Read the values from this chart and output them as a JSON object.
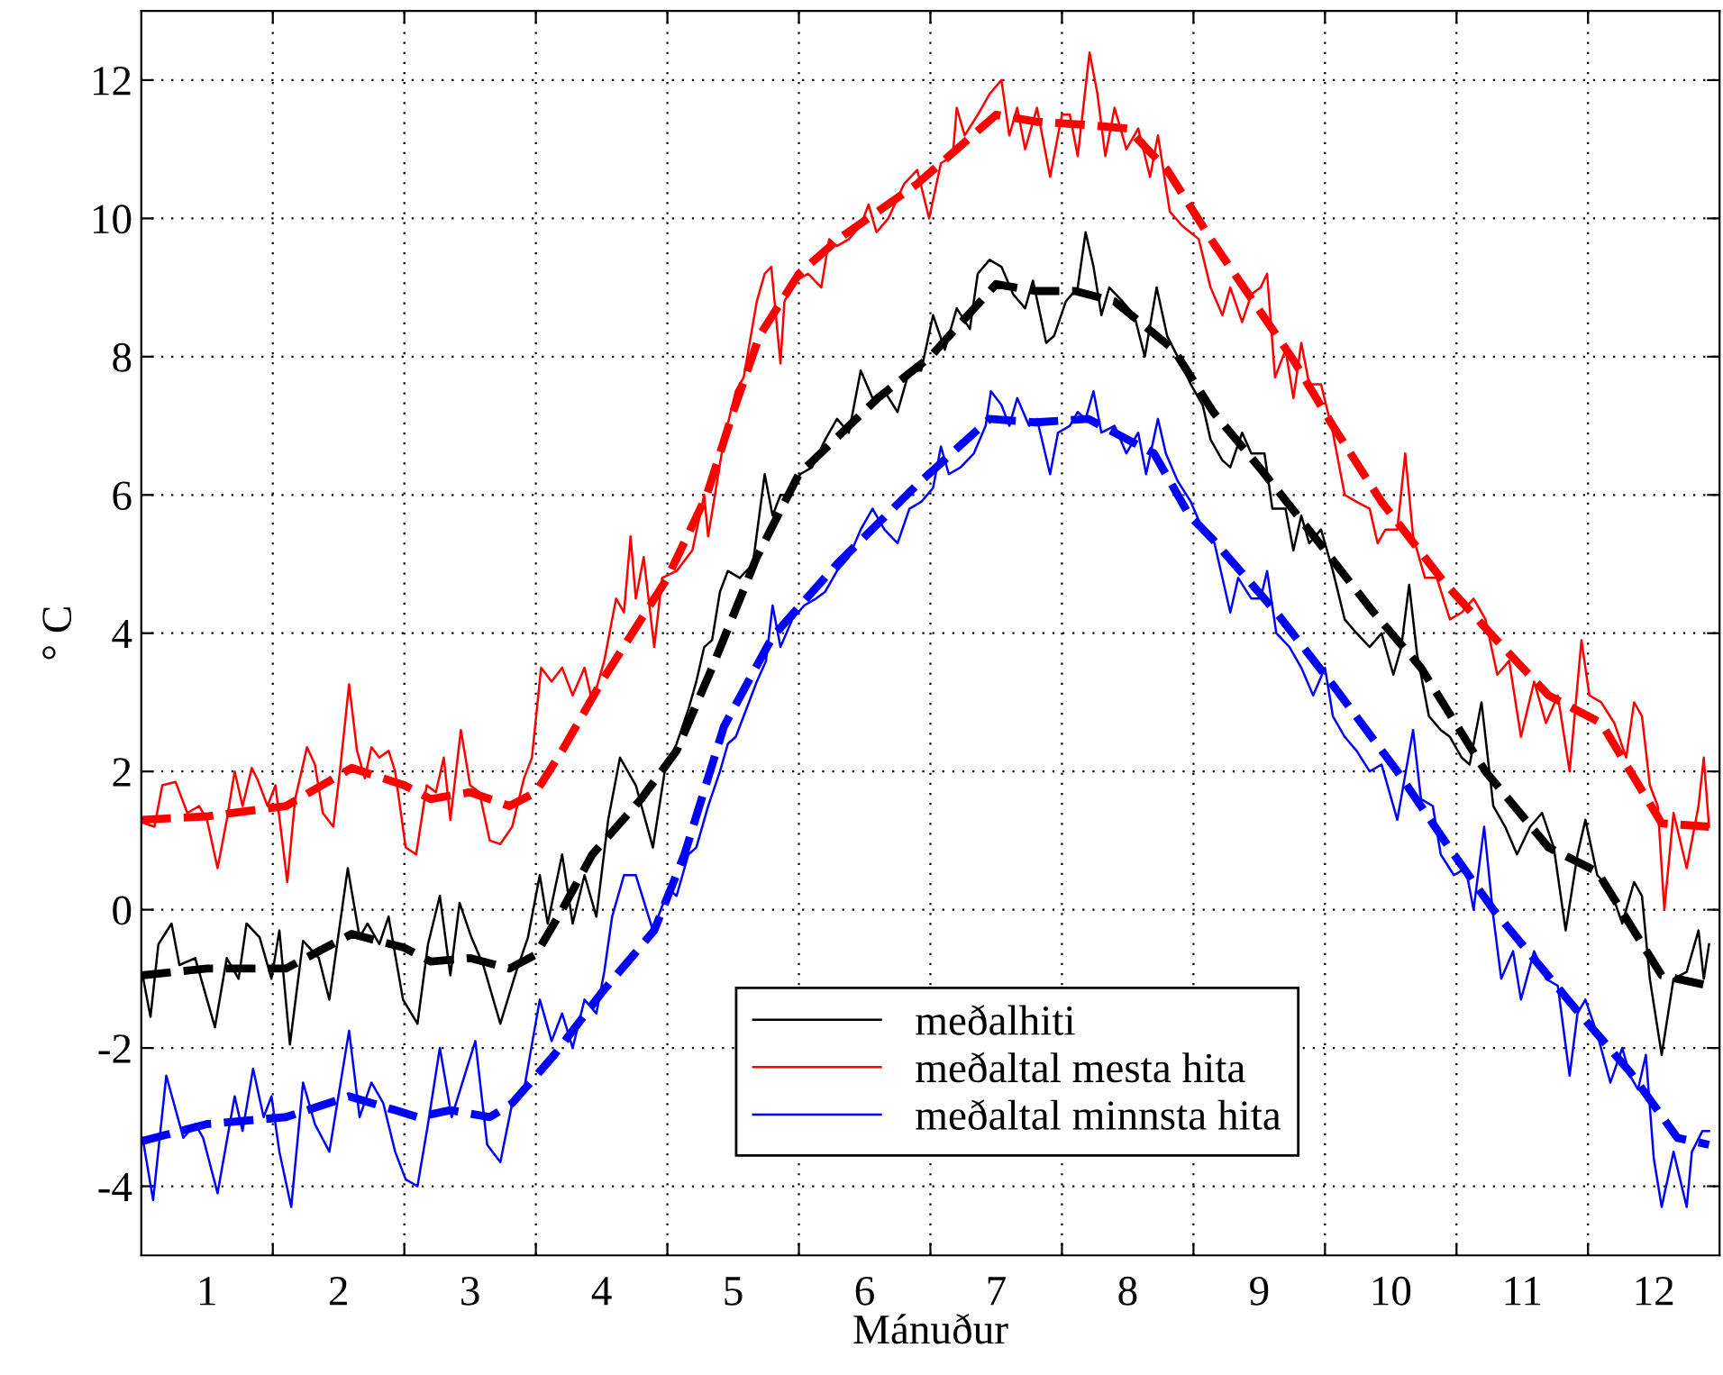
{
  "chart_data": {
    "type": "line",
    "xlabel": "Mánuður",
    "ylabel": "° C",
    "xlim": [
      0.5,
      12.5
    ],
    "ylim": [
      -5,
      13
    ],
    "xticks": [
      {
        "value": 1,
        "label": "1"
      },
      {
        "value": 1.5,
        "label": null
      },
      {
        "value": 2,
        "label": "2"
      },
      {
        "value": 2.5,
        "label": null
      },
      {
        "value": 3,
        "label": "3"
      },
      {
        "value": 3.5,
        "label": null
      },
      {
        "value": 4,
        "label": "4"
      },
      {
        "value": 4.5,
        "label": null
      },
      {
        "value": 5,
        "label": "5"
      },
      {
        "value": 5.5,
        "label": null
      },
      {
        "value": 6,
        "label": "6"
      },
      {
        "value": 6.5,
        "label": null
      },
      {
        "value": 7,
        "label": "7"
      },
      {
        "value": 7.5,
        "label": null
      },
      {
        "value": 8,
        "label": "8"
      },
      {
        "value": 8.5,
        "label": null
      },
      {
        "value": 9,
        "label": "9"
      },
      {
        "value": 9.5,
        "label": null
      },
      {
        "value": 10,
        "label": "10"
      },
      {
        "value": 10.5,
        "label": null
      },
      {
        "value": 11,
        "label": "11"
      },
      {
        "value": 11.5,
        "label": null
      },
      {
        "value": 12,
        "label": "12"
      }
    ],
    "yticks": [
      -4,
      -2,
      0,
      2,
      4,
      6,
      8,
      10,
      12
    ],
    "grid": true,
    "legend": "bottom",
    "line_style": "solid",
    "marker": "none",
    "series": [
      {
        "name": "meðalhiti",
        "color": "#000000",
        "x": [
          0.51,
          0.57,
          0.63,
          0.73,
          0.79,
          0.91,
          1.06,
          1.15,
          1.24,
          1.3,
          1.4,
          1.49,
          1.55,
          1.63,
          1.73,
          1.85,
          1.93,
          2.07,
          2.16,
          2.22,
          2.31,
          2.38,
          2.49,
          2.6,
          2.68,
          2.77,
          2.85,
          2.92,
          3.01,
          3.1,
          3.23,
          3.35,
          3.44,
          3.53,
          3.59,
          3.7,
          3.78,
          3.87,
          3.96,
          4.05,
          4.14,
          4.26,
          4.39,
          4.48,
          4.57,
          4.66,
          4.72,
          4.78,
          4.84,
          4.9,
          4.96,
          5.05,
          5.15,
          5.24,
          5.3,
          5.36,
          5.42,
          5.51,
          5.6,
          5.7,
          5.79,
          5.88,
          5.97,
          6.06,
          6.15,
          6.25,
          6.34,
          6.43,
          6.52,
          6.61,
          6.7,
          6.8,
          6.86,
          6.95,
          7.04,
          7.13,
          7.22,
          7.28,
          7.38,
          7.44,
          7.53,
          7.62,
          7.68,
          7.74,
          7.8,
          7.86,
          7.96,
          8.05,
          8.13,
          8.22,
          8.3,
          8.38,
          8.48,
          8.57,
          8.63,
          8.72,
          8.78,
          8.87,
          8.94,
          9.04,
          9.1,
          9.2,
          9.26,
          9.32,
          9.38,
          9.47,
          9.56,
          9.65,
          9.74,
          9.84,
          9.93,
          10.02,
          10.08,
          10.14,
          10.2,
          10.29,
          10.38,
          10.45,
          10.54,
          10.6,
          10.69,
          10.78,
          10.87,
          10.96,
          11.06,
          11.15,
          11.24,
          11.33,
          11.42,
          11.48,
          11.57,
          11.67,
          11.76,
          11.85,
          11.91,
          11.97,
          12.06,
          12.15,
          12.25,
          12.34,
          12.38,
          12.42
        ],
        "values": [
          -0.95,
          -1.55,
          -0.5,
          -0.2,
          -0.8,
          -0.7,
          -1.7,
          -0.7,
          -1.0,
          -0.2,
          -0.4,
          -1.0,
          -0.3,
          -1.95,
          -0.45,
          -0.7,
          -1.3,
          0.6,
          -0.4,
          -0.2,
          -0.5,
          -0.1,
          -1.3,
          -1.65,
          -0.5,
          0.2,
          -0.95,
          0.1,
          -0.4,
          -0.8,
          -1.65,
          -0.9,
          -0.4,
          0.5,
          -0.2,
          0.8,
          -0.2,
          0.5,
          -0.1,
          1.3,
          2.2,
          1.8,
          0.9,
          2.0,
          2.4,
          2.9,
          3.3,
          3.8,
          3.9,
          4.6,
          4.9,
          4.8,
          5.0,
          6.3,
          5.7,
          6.0,
          6.0,
          6.3,
          6.4,
          6.8,
          7.1,
          6.9,
          7.8,
          7.4,
          7.5,
          7.2,
          7.8,
          7.8,
          8.6,
          8.1,
          8.7,
          8.4,
          9.2,
          9.4,
          9.3,
          8.9,
          8.7,
          9.1,
          8.2,
          8.3,
          8.8,
          9.0,
          9.8,
          9.3,
          8.6,
          9.0,
          8.8,
          8.6,
          8.0,
          9.0,
          8.3,
          8.0,
          7.6,
          7.3,
          6.8,
          6.5,
          6.4,
          6.9,
          6.6,
          6.6,
          5.8,
          5.8,
          5.2,
          5.7,
          5.3,
          5.5,
          4.9,
          4.2,
          4.0,
          3.8,
          4.0,
          3.4,
          3.8,
          4.7,
          3.7,
          2.8,
          2.6,
          2.5,
          2.2,
          2.1,
          3.0,
          1.5,
          1.2,
          0.8,
          1.2,
          1.4,
          0.9,
          -0.3,
          0.8,
          1.3,
          0.5,
          0.3,
          -0.2,
          0.4,
          0.2,
          -1.0,
          -2.1,
          -1.0,
          -0.9,
          -0.3,
          -1.0,
          -0.5
        ]
      },
      {
        "name": "meðaltal mesta hita",
        "color": "#ff0000",
        "x": [
          0.51,
          0.6,
          0.66,
          0.76,
          0.85,
          0.94,
          1.0,
          1.08,
          1.15,
          1.21,
          1.27,
          1.34,
          1.38,
          1.46,
          1.52,
          1.61,
          1.67,
          1.76,
          1.82,
          1.88,
          1.96,
          2.01,
          2.08,
          2.14,
          2.2,
          2.25,
          2.31,
          2.38,
          2.43,
          2.51,
          2.59,
          2.67,
          2.74,
          2.8,
          2.85,
          2.93,
          3.0,
          3.07,
          3.15,
          3.23,
          3.32,
          3.41,
          3.47,
          3.54,
          3.62,
          3.7,
          3.78,
          3.87,
          3.93,
          4.02,
          4.11,
          4.17,
          4.22,
          4.26,
          4.32,
          4.4,
          4.46,
          4.57,
          4.69,
          4.78,
          4.81,
          4.93,
          5.02,
          5.08,
          5.18,
          5.24,
          5.29,
          5.36,
          5.39,
          5.48,
          5.57,
          5.67,
          5.73,
          5.79,
          5.88,
          5.97,
          6.03,
          6.09,
          6.18,
          6.3,
          6.4,
          6.49,
          6.58,
          6.67,
          6.7,
          6.76,
          6.86,
          6.95,
          7.04,
          7.1,
          7.16,
          7.22,
          7.31,
          7.41,
          7.5,
          7.56,
          7.62,
          7.71,
          7.77,
          7.83,
          7.9,
          7.99,
          8.08,
          8.17,
          8.23,
          8.32,
          8.41,
          8.54,
          8.63,
          8.72,
          8.78,
          8.87,
          8.94,
          9.01,
          9.06,
          9.12,
          9.2,
          9.26,
          9.32,
          9.38,
          9.47,
          9.56,
          9.65,
          9.74,
          9.84,
          9.9,
          9.96,
          10.05,
          10.11,
          10.17,
          10.26,
          10.35,
          10.45,
          10.54,
          10.63,
          10.72,
          10.81,
          10.9,
          10.99,
          11.09,
          11.18,
          11.27,
          11.36,
          11.45,
          11.51,
          11.6,
          11.7,
          11.79,
          11.85,
          11.91,
          11.97,
          12.03,
          12.08,
          12.15,
          12.25,
          12.34,
          12.38,
          12.42
        ],
        "values": [
          1.26,
          1.2,
          1.8,
          1.85,
          1.4,
          1.5,
          1.3,
          0.6,
          1.3,
          2.0,
          1.5,
          2.05,
          1.9,
          1.5,
          1.8,
          0.4,
          1.6,
          2.35,
          2.1,
          1.4,
          1.2,
          2.0,
          3.26,
          2.3,
          1.9,
          2.35,
          2.2,
          2.3,
          2.0,
          0.9,
          0.8,
          1.8,
          1.7,
          2.2,
          1.3,
          2.6,
          1.8,
          1.7,
          1.0,
          0.95,
          1.2,
          1.9,
          2.2,
          3.5,
          3.3,
          3.5,
          3.1,
          3.5,
          3.0,
          3.6,
          4.5,
          4.3,
          5.4,
          4.5,
          5.1,
          3.8,
          4.8,
          4.9,
          5.2,
          6.0,
          5.4,
          6.8,
          7.5,
          7.7,
          8.8,
          9.2,
          9.3,
          7.9,
          8.8,
          9.1,
          9.2,
          9.0,
          9.7,
          9.6,
          9.7,
          9.9,
          10.2,
          9.8,
          10.0,
          10.5,
          10.7,
          10.0,
          10.8,
          10.9,
          11.6,
          11.2,
          11.5,
          11.8,
          12.0,
          11.2,
          11.6,
          11.0,
          11.6,
          10.6,
          11.5,
          11.5,
          10.9,
          12.4,
          11.8,
          10.9,
          11.6,
          11.0,
          11.3,
          10.6,
          11.2,
          10.1,
          9.9,
          9.7,
          9.0,
          8.6,
          9.0,
          8.5,
          8.9,
          9.0,
          9.2,
          7.7,
          8.1,
          7.4,
          8.2,
          7.6,
          7.6,
          6.9,
          6.0,
          5.9,
          5.8,
          5.3,
          5.5,
          5.5,
          6.6,
          5.4,
          4.8,
          4.8,
          4.2,
          4.3,
          4.5,
          4.2,
          3.4,
          3.6,
          2.5,
          3.3,
          2.7,
          3.1,
          2.0,
          3.9,
          3.1,
          3.0,
          2.7,
          2.2,
          3.0,
          2.8,
          1.8,
          1.5,
          0.0,
          1.4,
          0.6,
          1.5,
          2.2,
          1.2
        ]
      },
      {
        "name": "meðaltal minnsta hita",
        "color": "#0000ff",
        "x": [
          0.51,
          0.59,
          0.69,
          0.82,
          0.91,
          0.97,
          1.08,
          1.21,
          1.27,
          1.35,
          1.43,
          1.49,
          1.55,
          1.64,
          1.73,
          1.82,
          1.93,
          2.08,
          2.16,
          2.25,
          2.34,
          2.43,
          2.51,
          2.6,
          2.68,
          2.77,
          2.86,
          3.04,
          3.13,
          3.23,
          3.32,
          3.41,
          3.53,
          3.62,
          3.7,
          3.78,
          3.87,
          3.96,
          4.02,
          4.08,
          4.17,
          4.26,
          4.39,
          4.51,
          4.57,
          4.66,
          4.72,
          4.81,
          4.9,
          4.96,
          5.02,
          5.12,
          5.18,
          5.25,
          5.3,
          5.36,
          5.45,
          5.54,
          5.63,
          5.7,
          5.79,
          5.88,
          5.97,
          6.06,
          6.15,
          6.25,
          6.34,
          6.43,
          6.52,
          6.58,
          6.64,
          6.73,
          6.83,
          6.92,
          6.96,
          7.04,
          7.1,
          7.16,
          7.25,
          7.31,
          7.41,
          7.47,
          7.56,
          7.62,
          7.68,
          7.74,
          7.8,
          7.9,
          7.99,
          8.08,
          8.14,
          8.23,
          8.29,
          8.38,
          8.48,
          8.57,
          8.66,
          8.78,
          8.84,
          8.94,
          9.01,
          9.06,
          9.13,
          9.23,
          9.32,
          9.41,
          9.5,
          9.56,
          9.65,
          9.74,
          9.84,
          9.93,
          10.05,
          10.17,
          10.23,
          10.32,
          10.38,
          10.48,
          10.57,
          10.63,
          10.71,
          10.78,
          10.84,
          10.93,
          10.99,
          11.09,
          11.18,
          11.27,
          11.36,
          11.42,
          11.48,
          11.57,
          11.67,
          11.76,
          11.82,
          11.88,
          11.94,
          12.0,
          12.06,
          12.15,
          12.25,
          12.29,
          12.37,
          12.42
        ],
        "values": [
          -3.3,
          -4.2,
          -2.4,
          -3.3,
          -3.1,
          -3.3,
          -4.1,
          -2.7,
          -3.2,
          -2.3,
          -3.0,
          -2.7,
          -3.5,
          -4.3,
          -2.5,
          -3.1,
          -3.5,
          -1.75,
          -3.0,
          -2.5,
          -2.8,
          -3.5,
          -3.9,
          -4.0,
          -3.1,
          -2.0,
          -3.0,
          -1.9,
          -3.4,
          -3.65,
          -2.8,
          -2.6,
          -1.3,
          -1.9,
          -1.5,
          -2.0,
          -1.3,
          -1.5,
          -0.9,
          -0.1,
          0.5,
          0.5,
          -0.3,
          0.3,
          0.2,
          0.8,
          0.9,
          1.5,
          2.0,
          2.4,
          2.5,
          3.0,
          3.3,
          3.6,
          4.4,
          3.8,
          4.2,
          4.4,
          4.5,
          4.6,
          4.9,
          5.1,
          5.5,
          5.8,
          5.5,
          5.3,
          5.8,
          5.9,
          6.1,
          6.7,
          6.3,
          6.4,
          6.6,
          7.0,
          7.5,
          7.3,
          7.0,
          7.4,
          7.0,
          7.1,
          6.3,
          6.9,
          7.0,
          7.2,
          7.1,
          7.5,
          6.9,
          7.0,
          6.6,
          6.9,
          6.3,
          7.1,
          6.6,
          6.2,
          5.9,
          5.5,
          5.3,
          4.3,
          4.8,
          4.5,
          4.5,
          4.9,
          4.0,
          3.8,
          3.5,
          3.1,
          3.5,
          2.8,
          2.5,
          2.3,
          2.0,
          2.1,
          1.3,
          2.6,
          1.6,
          1.5,
          0.8,
          0.5,
          0.6,
          0.0,
          1.2,
          -0.1,
          -1.0,
          -0.6,
          -1.3,
          -0.6,
          -1.0,
          -1.1,
          -2.4,
          -1.5,
          -1.3,
          -1.8,
          -2.5,
          -2.0,
          -2.4,
          -2.6,
          -2.1,
          -3.6,
          -4.3,
          -3.5,
          -4.3,
          -3.5,
          -3.2,
          -3.2
        ]
      },
      {
        "color": "#000000",
        "line_style": "dashed",
        "x": [
          0.5,
          1.0,
          1.6,
          2.1,
          2.5,
          2.7,
          3.0,
          3.3,
          3.5,
          3.7,
          3.93,
          4.3,
          4.57,
          4.84,
          5.18,
          5.5,
          6.1,
          6.5,
          7.0,
          7.3,
          7.6,
          7.9,
          8.35,
          8.65,
          9.0,
          9.5,
          9.87,
          10.23,
          10.72,
          11.2,
          11.57,
          12.06,
          12.42
        ],
        "values": [
          -0.95,
          -0.85,
          -0.85,
          -0.35,
          -0.55,
          -0.75,
          -0.7,
          -0.85,
          -0.65,
          0.0,
          0.8,
          1.6,
          2.3,
          3.5,
          5.1,
          6.3,
          7.4,
          8.0,
          9.05,
          8.95,
          8.95,
          8.8,
          8.1,
          7.2,
          6.4,
          5.2,
          4.3,
          3.5,
          2.0,
          0.9,
          0.55,
          -0.95,
          -1.1
        ]
      },
      {
        "color": "#ff0000",
        "line_style": "dashed",
        "x": [
          0.5,
          1.0,
          1.6,
          2.1,
          2.5,
          2.7,
          3.0,
          3.3,
          3.5,
          3.7,
          4.0,
          4.5,
          4.8,
          5.0,
          5.2,
          5.5,
          5.8,
          6.1,
          6.4,
          6.7,
          7.0,
          7.3,
          7.7,
          8.0,
          8.3,
          8.65,
          9.26,
          9.56,
          9.93,
          10.4,
          10.78,
          11.2,
          11.6,
          12.06,
          12.42
        ],
        "values": [
          1.3,
          1.35,
          1.5,
          2.05,
          1.8,
          1.6,
          1.7,
          1.5,
          1.7,
          2.3,
          3.3,
          4.8,
          6.0,
          7.2,
          8.3,
          9.2,
          9.7,
          10.1,
          10.5,
          11.0,
          11.5,
          11.4,
          11.35,
          11.3,
          10.7,
          9.65,
          7.95,
          7.0,
          5.9,
          4.75,
          3.95,
          3.1,
          2.7,
          1.25,
          1.2
        ]
      },
      {
        "color": "#0000ff",
        "line_style": "dashed",
        "x": [
          0.5,
          1.0,
          1.6,
          2.08,
          2.43,
          2.6,
          2.85,
          3.15,
          3.32,
          3.64,
          4.0,
          4.4,
          4.63,
          4.93,
          5.3,
          5.79,
          6.4,
          6.95,
          7.3,
          7.7,
          8.2,
          8.47,
          8.65,
          9.13,
          9.56,
          10.05,
          10.48,
          10.78,
          11.39,
          11.82,
          12.18,
          12.42
        ],
        "values": [
          -3.35,
          -3.1,
          -3.0,
          -2.7,
          -2.9,
          -3.0,
          -2.9,
          -3.0,
          -2.8,
          -2.1,
          -1.2,
          -0.3,
          0.8,
          2.65,
          3.95,
          5.0,
          6.15,
          7.1,
          7.05,
          7.1,
          6.6,
          5.7,
          5.35,
          4.3,
          3.25,
          2.0,
          0.8,
          0.0,
          -1.4,
          -2.35,
          -3.3,
          -3.4
        ]
      }
    ]
  }
}
